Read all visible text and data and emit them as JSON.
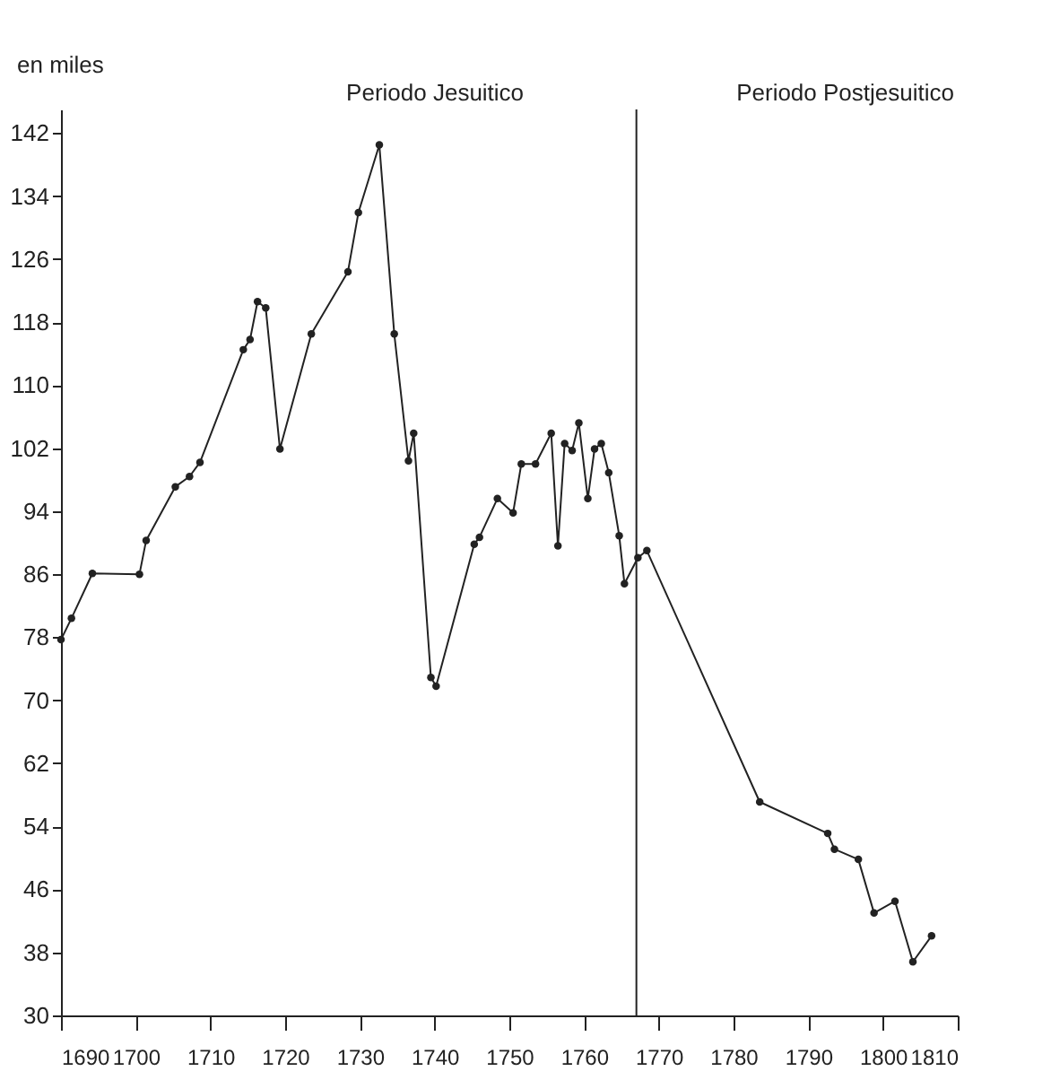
{
  "chart_data": {
    "type": "line",
    "ylabel": "en miles",
    "annotations": [
      "Periodo Jesuitico",
      "Periodo Postjesuitico"
    ],
    "x": [
      1690,
      1691.4,
      1694.2,
      1700.5,
      1701.4,
      1705.3,
      1707.2,
      1708.6,
      1714.4,
      1715.3,
      1716.3,
      1717.4,
      1719.3,
      1723.5,
      1728.4,
      1729.8,
      1732.6,
      1734.6,
      1736.5,
      1737.2,
      1739.5,
      1740.2,
      1745.3,
      1746,
      1748.4,
      1750.5,
      1751.6,
      1753.5,
      1755.6,
      1756.5,
      1757.4,
      1758.4,
      1759.3,
      1760.5,
      1761.4,
      1762.3,
      1763.3,
      1764.7,
      1765.4,
      1767.2,
      1768.4,
      1783.5,
      1792.6,
      1793.5,
      1796.7,
      1798.8,
      1801.6,
      1804,
      1806.5
    ],
    "series": [
      {
        "color": "#222222",
        "values": [
          77.7,
          80.4,
          86.1,
          86,
          90.3,
          97.1,
          98.4,
          100.2,
          114.5,
          115.8,
          120.6,
          119.8,
          101.9,
          116.5,
          124.4,
          131.9,
          140.5,
          116.5,
          100.4,
          103.9,
          72.9,
          71.8,
          89.8,
          90.7,
          95.6,
          93.8,
          100,
          100,
          103.9,
          89.6,
          102.6,
          101.7,
          105.2,
          95.6,
          101.9,
          102.6,
          98.9,
          90.9,
          84.8,
          88.1,
          89,
          57.1,
          53.1,
          51.1,
          49.8,
          43,
          44.5,
          36.8,
          40.1
        ]
      }
    ],
    "xlim": [
      1690,
      1810
    ],
    "xticks": [
      1690,
      1700,
      1710,
      1720,
      1730,
      1740,
      1750,
      1760,
      1770,
      1780,
      1790,
      1800,
      1810
    ],
    "ylim": [
      30,
      145
    ],
    "yticks": [
      30,
      38,
      46,
      54,
      62,
      70,
      78,
      86,
      94,
      102,
      110,
      118,
      126,
      134,
      142
    ],
    "ref_lines": [
      {
        "axis": "x",
        "value": 1767,
        "color": "#222222",
        "line_style": "solid"
      }
    ],
    "marker": "circle",
    "line_style": "solid",
    "grid": false
  }
}
